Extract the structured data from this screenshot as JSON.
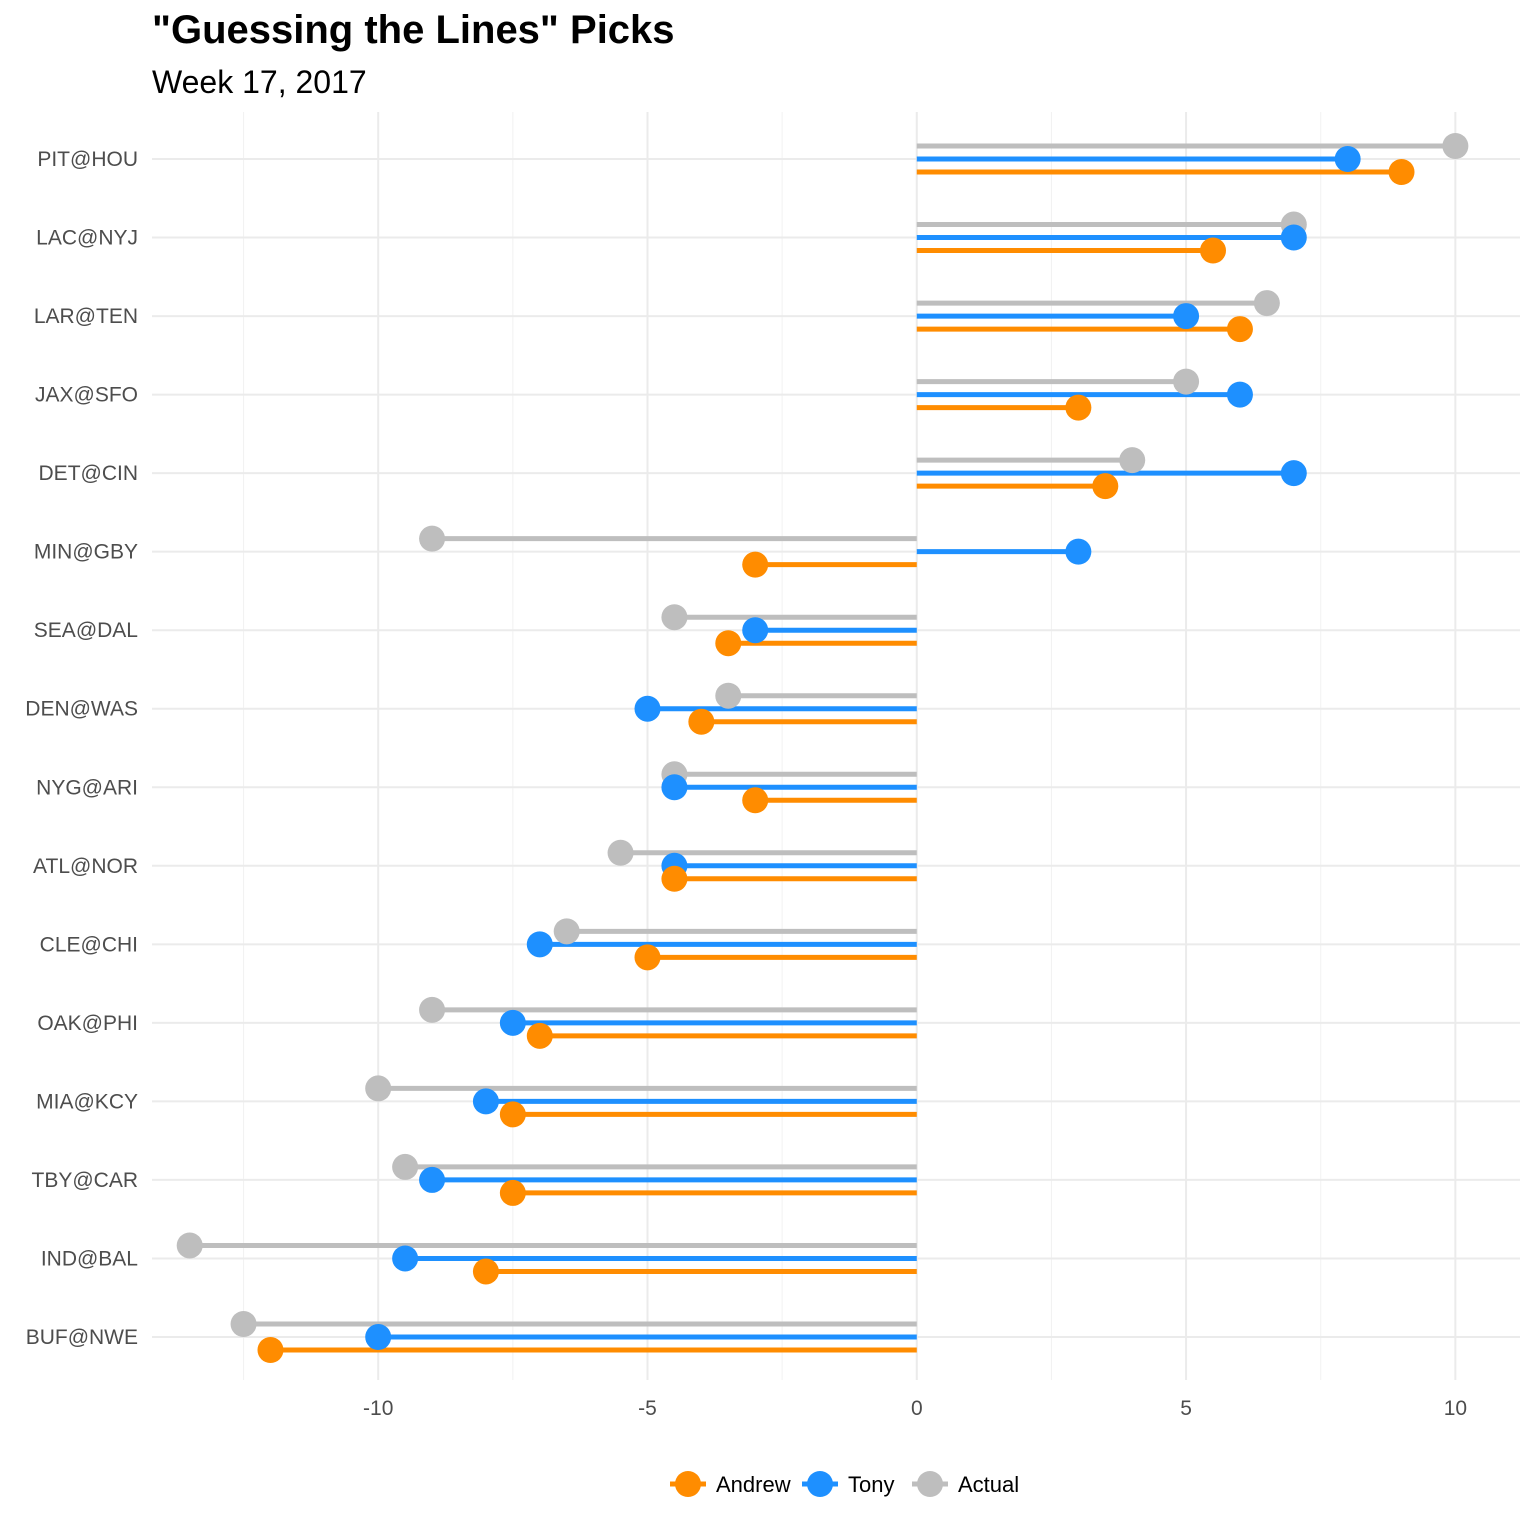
{
  "chart_data": {
    "type": "dumbbell",
    "title": "\"Guessing the Lines\" Picks",
    "subtitle": "Week 17, 2017",
    "xlabel": "",
    "ylabel": "",
    "xlim": [
      -14.2,
      11.2
    ],
    "xticks": [
      -10,
      -5,
      0,
      5,
      10
    ],
    "grid": true,
    "legend_position": "bottom",
    "categories": [
      "PIT@HOU",
      "LAC@NYJ",
      "LAR@TEN",
      "JAX@SFO",
      "DET@CIN",
      "MIN@GBY",
      "SEA@DAL",
      "DEN@WAS",
      "NYG@ARI",
      "ATL@NOR",
      "CLE@CHI",
      "OAK@PHI",
      "MIA@KCY",
      "TBY@CAR",
      "IND@BAL",
      "BUF@NWE"
    ],
    "series": [
      {
        "name": "Actual",
        "color": "#bebebe",
        "values": [
          10,
          7,
          6.5,
          5,
          4,
          -9,
          -4.5,
          -3.5,
          -4.5,
          -5.5,
          -6.5,
          -9,
          -10,
          -9.5,
          -13.5,
          -12.5
        ]
      },
      {
        "name": "Tony",
        "color": "#1e90ff",
        "values": [
          8,
          7,
          5,
          6,
          7,
          3,
          -3,
          -5,
          -4.5,
          -4.5,
          -7,
          -7.5,
          -8,
          -9,
          -9.5,
          -10
        ]
      },
      {
        "name": "Andrew",
        "color": "#ff8c00",
        "values": [
          9,
          5.5,
          6,
          3,
          3.5,
          -3,
          -3.5,
          -4,
          -3,
          -4.5,
          -5,
          -7,
          -7.5,
          -7.5,
          -8,
          -12
        ]
      }
    ],
    "legend_order": [
      "Andrew",
      "Tony",
      "Actual"
    ]
  }
}
